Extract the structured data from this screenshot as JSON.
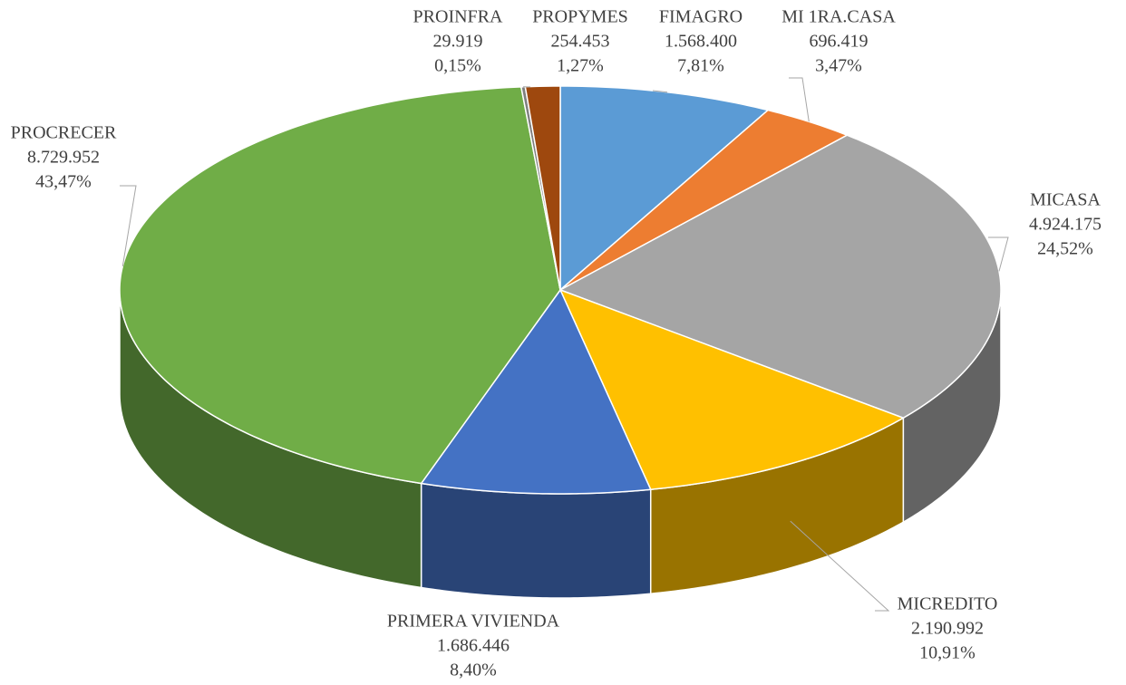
{
  "chart_data": {
    "type": "pie3d",
    "categories": [
      "FIMAGRO",
      "MI 1RA.CASA",
      "MICASA",
      "MICREDITO",
      "PRIMERA VIVIENDA",
      "PROCRECER",
      "PROINFRA",
      "PROPYMES"
    ],
    "values": [
      1568400,
      696419,
      4924175,
      2190992,
      1686446,
      8729952,
      29919,
      254453
    ],
    "value_labels": [
      "1.568.400",
      "696.419",
      "4.924.175",
      "2.190.992",
      "1.686.446",
      "8.729.952",
      "29.919",
      "254.453"
    ],
    "percents": [
      7.81,
      3.47,
      24.52,
      10.91,
      8.4,
      43.47,
      0.15,
      1.27
    ],
    "percent_labels": [
      "7,81%",
      "3,47%",
      "24,52%",
      "10,91%",
      "8,40%",
      "43,47%",
      "0,15%",
      "1,27%"
    ],
    "colors": [
      "#5b9bd5",
      "#ed7d31",
      "#a5a5a5",
      "#ffc000",
      "#4472c4",
      "#70ad47",
      "#7f7f7f",
      "#9e480e"
    ]
  }
}
